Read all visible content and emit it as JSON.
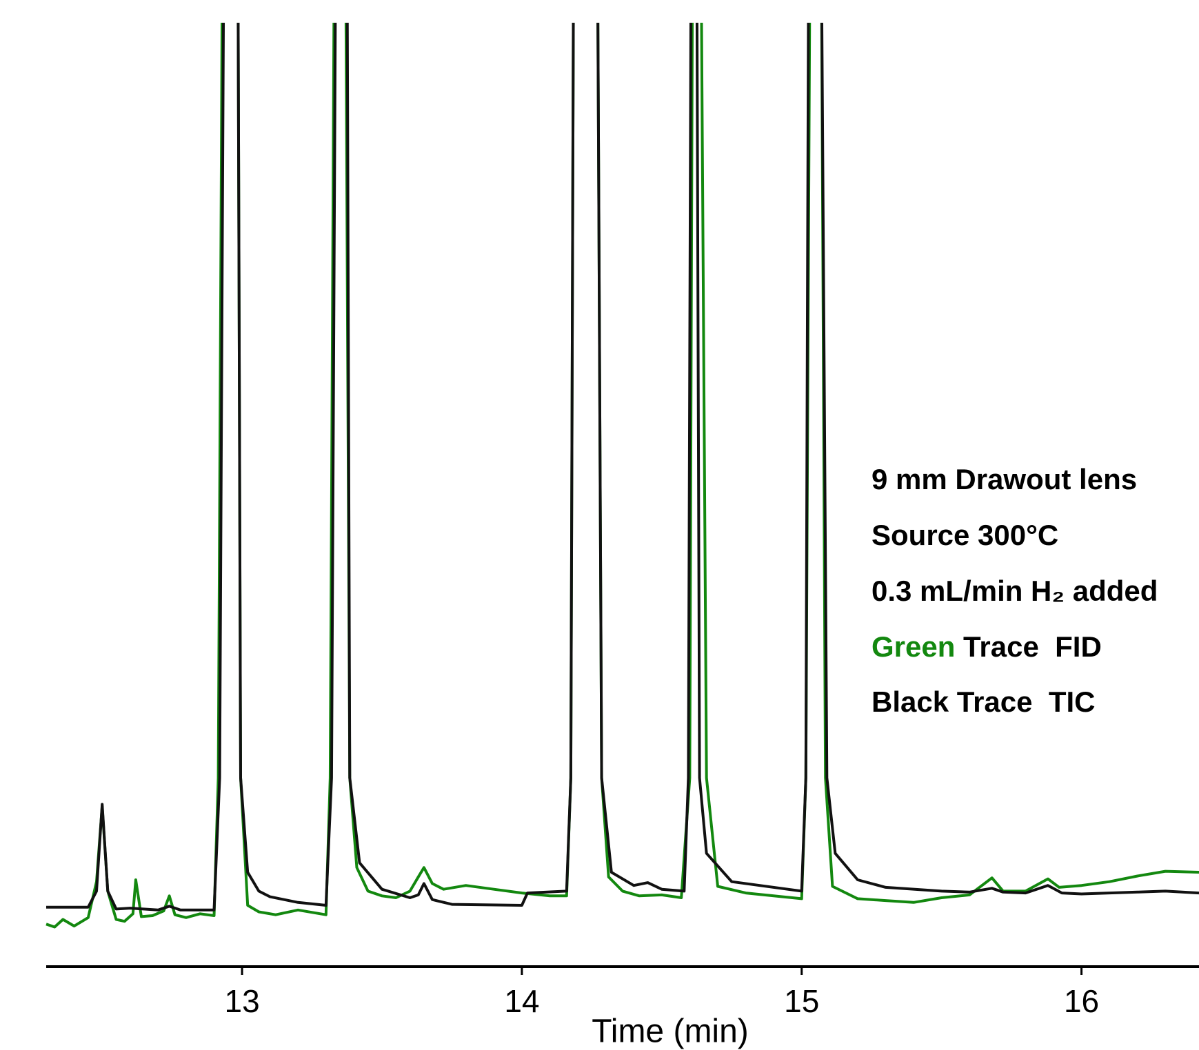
{
  "chart_data": {
    "type": "line",
    "x_label": "Time (min)",
    "xlim": [
      12.3,
      16.42
    ],
    "xticks": [
      13,
      14,
      15,
      16
    ],
    "ylim": [
      0,
      100
    ],
    "annotations": [
      "9 mm Drawout lens",
      "Source 300°C",
      "0.3 mL/min H₂ added"
    ],
    "series": [
      {
        "name": "Green Trace  FID",
        "color": "#13880f",
        "x": [
          12.3,
          12.33,
          12.36,
          12.4,
          12.45,
          12.48,
          12.5,
          12.52,
          12.55,
          12.58,
          12.61,
          12.62,
          12.64,
          12.68,
          12.72,
          12.74,
          12.76,
          12.8,
          12.85,
          12.9,
          12.915,
          12.93,
          12.985,
          12.995,
          13.02,
          13.06,
          13.12,
          13.2,
          13.3,
          13.315,
          13.33,
          13.37,
          13.385,
          13.41,
          13.45,
          13.5,
          13.55,
          13.6,
          13.63,
          13.65,
          13.68,
          13.72,
          13.8,
          13.9,
          14.0,
          14.1,
          14.16,
          14.175,
          14.185,
          14.27,
          14.285,
          14.31,
          14.36,
          14.42,
          14.5,
          14.57,
          14.6,
          14.61,
          14.64,
          14.66,
          14.7,
          14.8,
          14.9,
          15.0,
          15.015,
          15.03,
          15.07,
          15.085,
          15.11,
          15.2,
          15.3,
          15.4,
          15.5,
          15.6,
          15.68,
          15.72,
          15.8,
          15.88,
          15.92,
          16.0,
          16.1,
          16.2,
          16.3,
          16.42
        ],
        "values": [
          4.5,
          4.2,
          5.0,
          4.3,
          5.2,
          9,
          17,
          8,
          5.0,
          4.8,
          5.6,
          9.2,
          5.3,
          5.4,
          5.9,
          7.5,
          5.5,
          5.2,
          5.6,
          5.4,
          20,
          110,
          110,
          20,
          6.5,
          5.8,
          5.5,
          6.0,
          5.5,
          20,
          110,
          110,
          20,
          10.5,
          8.0,
          7.5,
          7.3,
          8.0,
          9.5,
          10.5,
          8.8,
          8.2,
          8.6,
          8.2,
          7.8,
          7.5,
          7.5,
          20,
          110,
          110,
          20,
          9.5,
          8.0,
          7.5,
          7.6,
          7.3,
          20,
          110,
          110,
          20,
          8.5,
          7.8,
          7.5,
          7.2,
          20,
          110,
          110,
          20,
          8.5,
          7.2,
          7.0,
          6.8,
          7.3,
          7.6,
          9.4,
          8.0,
          8.0,
          9.3,
          8.4,
          8.6,
          9.0,
          9.6,
          10.1,
          10.0
        ]
      },
      {
        "name": "Black Trace  TIC",
        "color": "#111111",
        "x": [
          12.3,
          12.45,
          12.48,
          12.5,
          12.52,
          12.55,
          12.6,
          12.7,
          12.74,
          12.78,
          12.9,
          12.92,
          12.935,
          12.985,
          12.995,
          13.02,
          13.06,
          13.1,
          13.2,
          13.3,
          13.32,
          13.335,
          13.375,
          13.385,
          13.42,
          13.5,
          13.6,
          13.63,
          13.65,
          13.68,
          13.75,
          14.0,
          14.02,
          14.16,
          14.175,
          14.185,
          14.27,
          14.285,
          14.32,
          14.4,
          14.45,
          14.5,
          14.58,
          14.595,
          14.605,
          14.625,
          14.635,
          14.66,
          14.75,
          15.0,
          15.015,
          15.025,
          15.07,
          15.09,
          15.12,
          15.2,
          15.3,
          15.5,
          15.6,
          15.68,
          15.72,
          15.8,
          15.88,
          15.93,
          16.0,
          16.2,
          16.3,
          16.42
        ],
        "values": [
          6.3,
          6.3,
          8,
          17.2,
          8,
          6.1,
          6.2,
          6.0,
          6.4,
          6.0,
          6.0,
          20,
          110,
          110,
          20,
          10,
          8.0,
          7.4,
          6.8,
          6.5,
          20,
          110,
          110,
          20,
          11,
          8.2,
          7.3,
          7.6,
          8.8,
          7.1,
          6.6,
          6.5,
          7.8,
          8.0,
          20,
          110,
          110,
          20,
          10,
          8.6,
          8.9,
          8.2,
          8.0,
          20,
          110,
          110,
          20,
          12,
          9.0,
          8.0,
          20,
          110,
          110,
          20,
          12,
          9.2,
          8.4,
          8.0,
          7.9,
          8.3,
          7.9,
          7.8,
          8.6,
          7.8,
          7.7,
          7.9,
          8.0,
          7.8
        ]
      }
    ]
  }
}
